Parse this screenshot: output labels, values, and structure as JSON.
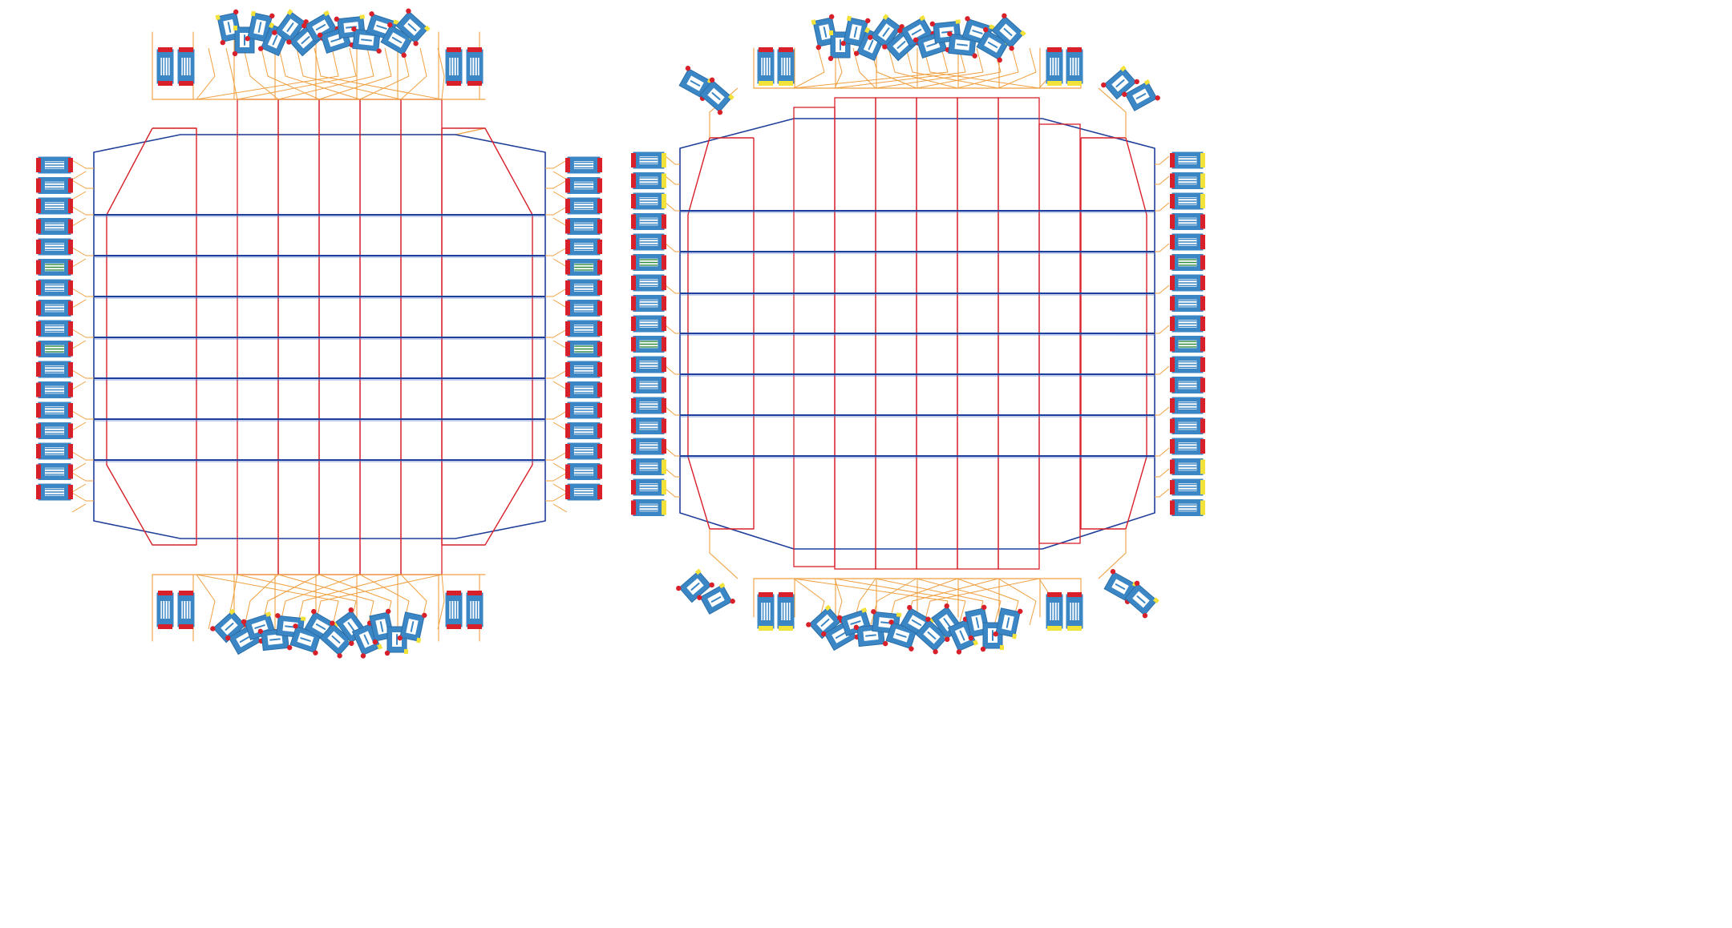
{
  "colors": {
    "background": "#ffffff",
    "blue_wire": "#1f3f9a",
    "red_wire": "#d8202a",
    "orange_wire": "#f0a040",
    "component_blue": "#3b86c4",
    "component_red": "#d8202a",
    "component_yellow": "#f3e23a",
    "component_green": "#2e8b3e"
  },
  "panels": [
    {
      "id": "left-layout",
      "variant": "straight-corners",
      "columns": 8,
      "rows": 7
    },
    {
      "id": "right-layout",
      "variant": "rotated-corners",
      "columns": 9,
      "rows": 7
    }
  ]
}
